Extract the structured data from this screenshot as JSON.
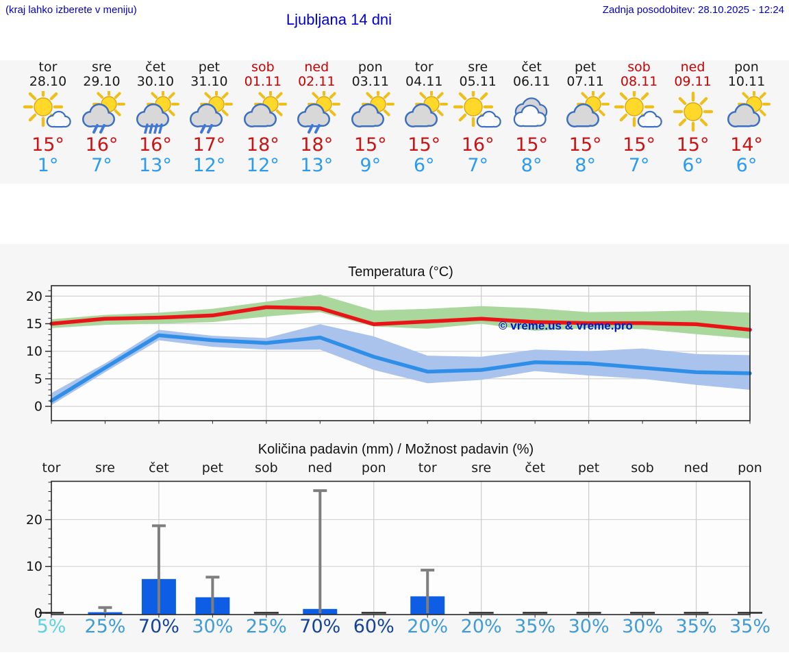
{
  "header": {
    "note": "(kraj lahko izberete v meniju)",
    "title": "Ljubljana 14 dni",
    "updated": "Zadnja posodobitev: 28.10.2025 - 12:24"
  },
  "watermark": "© vreme.us & vreme.pro",
  "strip": {
    "days": [
      {
        "name": "tor",
        "date": "28.10",
        "weekend": false,
        "icon": "sun-small-cloud",
        "tmax": "15°",
        "tmin": "1°"
      },
      {
        "name": "sre",
        "date": "29.10",
        "weekend": false,
        "icon": "sun-cloud-rain",
        "tmax": "16°",
        "tmin": "7°"
      },
      {
        "name": "čet",
        "date": "30.10",
        "weekend": false,
        "icon": "sun-cloud-heavy-rain",
        "tmax": "16°",
        "tmin": "13°"
      },
      {
        "name": "pet",
        "date": "31.10",
        "weekend": false,
        "icon": "sun-cloud-rain",
        "tmax": "17°",
        "tmin": "12°"
      },
      {
        "name": "sob",
        "date": "01.11",
        "weekend": true,
        "icon": "sun-cloud",
        "tmax": "18°",
        "tmin": "12°"
      },
      {
        "name": "ned",
        "date": "02.11",
        "weekend": true,
        "icon": "sun-cloud-rain",
        "tmax": "18°",
        "tmin": "13°"
      },
      {
        "name": "pon",
        "date": "03.11",
        "weekend": false,
        "icon": "sun-cloud",
        "tmax": "15°",
        "tmin": "9°"
      },
      {
        "name": "tor",
        "date": "04.11",
        "weekend": false,
        "icon": "sun-cloud",
        "tmax": "15°",
        "tmin": "6°"
      },
      {
        "name": "sre",
        "date": "05.11",
        "weekend": false,
        "icon": "sun-small-cloud",
        "tmax": "16°",
        "tmin": "7°"
      },
      {
        "name": "čet",
        "date": "06.11",
        "weekend": false,
        "icon": "cloudy",
        "tmax": "15°",
        "tmin": "8°"
      },
      {
        "name": "pet",
        "date": "07.11",
        "weekend": false,
        "icon": "sun-cloud",
        "tmax": "15°",
        "tmin": "8°"
      },
      {
        "name": "sob",
        "date": "08.11",
        "weekend": true,
        "icon": "sun-small-cloud",
        "tmax": "15°",
        "tmin": "7°"
      },
      {
        "name": "ned",
        "date": "09.11",
        "weekend": true,
        "icon": "sunny",
        "tmax": "15°",
        "tmin": "6°"
      },
      {
        "name": "pon",
        "date": "10.11",
        "weekend": false,
        "icon": "sun-cloud",
        "tmax": "14°",
        "tmin": "6°"
      }
    ]
  },
  "colors": {
    "header_blue": "#0000cc",
    "weekend_red": "#cc0000",
    "strip_max_red": "#c81414",
    "strip_min_blue": "#2a9bf0",
    "line_red": "#e81417",
    "line_blue": "#2f8fe8",
    "band_green": "#a9d79c",
    "band_blue": "#a9c3ec",
    "bar_blue": "#0d5ee4",
    "whisker_gray": "#7e7e7e",
    "prob_low": "#5ed3e0",
    "prob_mid": "#3f9cd6",
    "prob_high": "#15439b"
  },
  "chart_data": [
    {
      "type": "line",
      "title": "Temperatura (°C)",
      "categories": [
        "tor",
        "sre",
        "čet",
        "pet",
        "sob",
        "ned",
        "pon",
        "tor",
        "sre",
        "čet",
        "pet",
        "sob",
        "ned",
        "pon"
      ],
      "yticks": [
        0,
        5,
        10,
        15,
        20
      ],
      "ylim": [
        -2.6,
        21.9
      ],
      "grid": true,
      "legend": "none",
      "series": [
        {
          "name": "max temperature",
          "color": "#e81417",
          "values": [
            15,
            15.9,
            16.1,
            16.5,
            18,
            17.8,
            14.9,
            15.4,
            15.9,
            15.3,
            15.1,
            15.1,
            14.9,
            13.9
          ]
        },
        {
          "name": "min temperature",
          "color": "#2f8fe8",
          "values": [
            1,
            7,
            12.9,
            12,
            11.5,
            12.5,
            9,
            6.3,
            6.6,
            8,
            7.8,
            7,
            6.2,
            6
          ]
        }
      ],
      "bands": [
        {
          "series": "max temperature",
          "color": "#a9d79c",
          "hi": [
            15.8,
            16.6,
            17,
            17.7,
            19,
            20.3,
            17.4,
            17.7,
            18.2,
            17.8,
            17.1,
            17.2,
            17.4,
            17
          ],
          "lo": [
            14.2,
            14.8,
            15,
            15.3,
            16.3,
            17.1,
            14.5,
            14.1,
            15,
            13.7,
            14.2,
            14,
            13.1,
            12.3
          ]
        },
        {
          "series": "min temperature",
          "color": "#a9c3ec",
          "hi": [
            2.4,
            7.8,
            13.9,
            12.8,
            12.4,
            14.9,
            12.7,
            9.2,
            9,
            10.3,
            10,
            10.5,
            9.5,
            9.3
          ],
          "lo": [
            0.2,
            6.2,
            12,
            10.8,
            10.3,
            10.3,
            6.6,
            4.2,
            4.8,
            6.4,
            5.6,
            5,
            3.9,
            3
          ]
        }
      ]
    },
    {
      "type": "bar",
      "title": "Količina padavin (mm) / Možnost padavin (%)",
      "categories": [
        "tor",
        "sre",
        "čet",
        "pet",
        "sob",
        "ned",
        "pon",
        "tor",
        "sre",
        "čet",
        "pet",
        "sob",
        "ned",
        "pon"
      ],
      "yticks": [
        0,
        10,
        20
      ],
      "ylim": [
        0,
        28.5
      ],
      "grid": true,
      "values": [
        0,
        0.2,
        7.3,
        3.4,
        0,
        0.9,
        0,
        3.6,
        0,
        0,
        0,
        0,
        0,
        0
      ],
      "whisker_max": [
        null,
        1.2,
        18.7,
        7.7,
        null,
        26.2,
        null,
        9.2,
        null,
        null,
        null,
        null,
        null,
        null
      ],
      "probabilities_pct": [
        "5%",
        "25%",
        "70%",
        "30%",
        "25%",
        "70%",
        "60%",
        "20%",
        "20%",
        "35%",
        "30%",
        "30%",
        "35%",
        "35%"
      ]
    }
  ]
}
